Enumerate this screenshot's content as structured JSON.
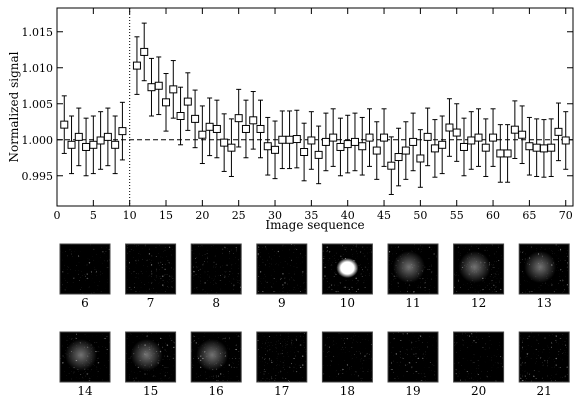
{
  "chart_data": {
    "type": "errorbar",
    "xlabel": "Image sequence",
    "ylabel": "Normalized signal",
    "xlim": [
      0,
      71
    ],
    "ylim": [
      0.9908,
      1.0183
    ],
    "xticks": [
      0,
      5,
      10,
      15,
      20,
      25,
      30,
      35,
      40,
      45,
      50,
      55,
      60,
      65,
      70
    ],
    "yticks": [
      0.995,
      {
        "value": 1,
        "label": "1.000"
      },
      1.005,
      {
        "value": 1.01,
        "label": "1.010"
      },
      1.015
    ],
    "hline": 1,
    "vline": 10,
    "series": [
      {
        "color": "#000000",
        "x": [
          1,
          2,
          3,
          4,
          5,
          6,
          7,
          8,
          9,
          11,
          12,
          13,
          14,
          15,
          16,
          17,
          18,
          19,
          20,
          21,
          22,
          23,
          24,
          25,
          26,
          27,
          28,
          29,
          30,
          31,
          32,
          33,
          34,
          35,
          36,
          37,
          38,
          39,
          40,
          41,
          42,
          43,
          44,
          45,
          46,
          47,
          48,
          49,
          50,
          51,
          52,
          53,
          54,
          55,
          56,
          57,
          58,
          59,
          60,
          61,
          62,
          63,
          64,
          65,
          66,
          67,
          68,
          69,
          70
        ],
        "values": [
          1.0021,
          0.9993,
          1.0004,
          0.999,
          0.9993,
          0.9999,
          1.0004,
          0.9993,
          1.0012,
          1.0103,
          1.0122,
          1.0073,
          1.0075,
          1.0052,
          1.007,
          1.0033,
          1.0053,
          1.0029,
          1.0007,
          1.0018,
          1.0015,
          0.9996,
          0.9989,
          1.003,
          1.0015,
          1.0027,
          1.0015,
          0.9991,
          0.9986,
          1.0,
          1.0,
          1.0001,
          0.9983,
          0.9999,
          0.9979,
          0.9997,
          1.0003,
          0.999,
          0.9994,
          0.9997,
          0.9991,
          1.0003,
          0.9985,
          1.0003,
          0.9964,
          0.9976,
          0.9985,
          0.9997,
          0.9974,
          1.0004,
          0.9988,
          0.9993,
          1.0017,
          1.001,
          0.999,
          0.9999,
          1.0003,
          0.9989,
          1.0003,
          0.9981,
          0.9981,
          1.0014,
          1.0007,
          0.9991,
          0.9989,
          0.9988,
          0.9989,
          1.0011,
          0.9999
        ],
        "errors": [
          0.004,
          0.004,
          0.004,
          0.004,
          0.004,
          0.004,
          0.004,
          0.004,
          0.004,
          0.004,
          0.004,
          0.004,
          0.004,
          0.004,
          0.004,
          0.004,
          0.004,
          0.004,
          0.004,
          0.004,
          0.004,
          0.004,
          0.004,
          0.004,
          0.004,
          0.004,
          0.004,
          0.004,
          0.004,
          0.004,
          0.004,
          0.004,
          0.004,
          0.004,
          0.004,
          0.004,
          0.004,
          0.004,
          0.004,
          0.004,
          0.004,
          0.004,
          0.004,
          0.004,
          0.004,
          0.004,
          0.004,
          0.004,
          0.004,
          0.004,
          0.004,
          0.004,
          0.004,
          0.004,
          0.004,
          0.004,
          0.004,
          0.004,
          0.004,
          0.004,
          0.004,
          0.004,
          0.004,
          0.004,
          0.004,
          0.004,
          0.004,
          0.004,
          0.004
        ]
      }
    ],
    "thumbnails": [
      "6",
      "7",
      "8",
      "9",
      "10",
      "11",
      "12",
      "13",
      "14",
      "15",
      "16",
      "17",
      "18",
      "19",
      "20",
      "21"
    ]
  }
}
